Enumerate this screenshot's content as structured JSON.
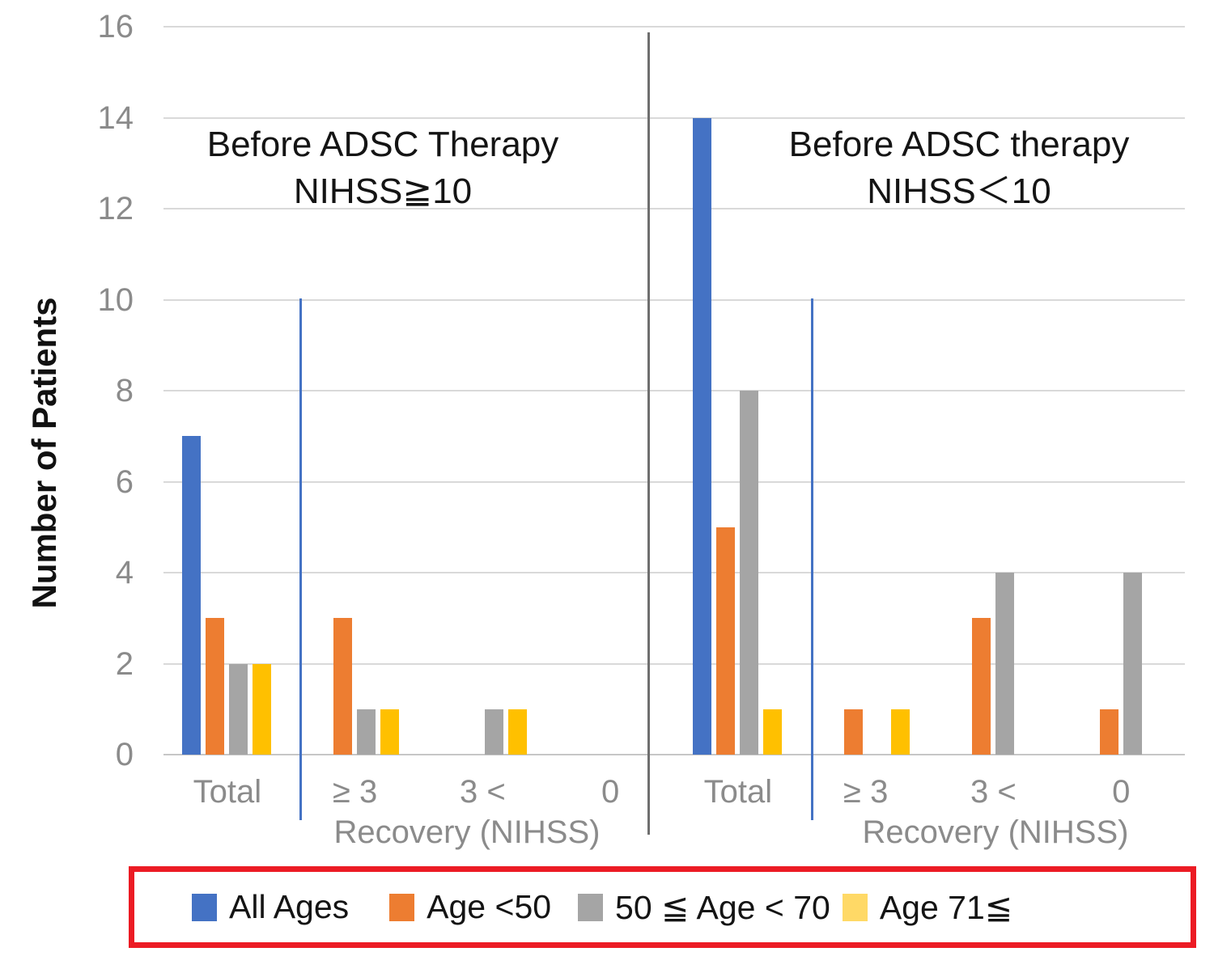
{
  "chart_data": {
    "type": "bar",
    "title": "",
    "ylabel": "Number of Patients",
    "xlabel": "Recovery (NIHSS)",
    "ylim": [
      0,
      16
    ],
    "yticks": [
      0,
      2,
      4,
      6,
      8,
      10,
      12,
      14,
      16
    ],
    "grid": "horizontal",
    "categories": [
      "Total",
      "≥ 3",
      "3 <",
      "0",
      "Total",
      "≥ 3",
      "3 <",
      "0"
    ],
    "panels": [
      {
        "title_line1": "Before ADSC Therapy",
        "title_line2": "NIHSS≧10",
        "category_indices": [
          0,
          1,
          2,
          3
        ]
      },
      {
        "title_line1": "Before ADSC therapy",
        "title_line2": "NIHSS＜10",
        "category_indices": [
          4,
          5,
          6,
          7
        ]
      }
    ],
    "series": [
      {
        "name": "All Ages",
        "color": "#4472C4",
        "values": [
          7,
          0,
          0,
          0,
          14,
          0,
          0,
          0
        ]
      },
      {
        "name": "Age <50",
        "color": "#ED7D31",
        "values": [
          3,
          3,
          0,
          0,
          5,
          1,
          3,
          1
        ]
      },
      {
        "name": "50 ≦ Age < 70",
        "color": "#A5A5A5",
        "values": [
          2,
          1,
          1,
          0,
          8,
          0,
          4,
          4
        ]
      },
      {
        "name": "Age 71≦",
        "color": "#FFC000",
        "values": [
          2,
          1,
          1,
          0,
          1,
          1,
          0,
          0
        ]
      }
    ],
    "legend": {
      "position": "bottom",
      "border_color": "#EC1B24",
      "items": [
        {
          "label": "All Ages",
          "swatch_color": "#4472C4"
        },
        {
          "label": "Age <50",
          "swatch_color": "#ED7D31"
        },
        {
          "label": "50 ≦ Age < 70",
          "swatch_color": "#A5A5A5"
        },
        {
          "label": "Age 71≦",
          "swatch_color": "#FFD966"
        }
      ]
    }
  }
}
